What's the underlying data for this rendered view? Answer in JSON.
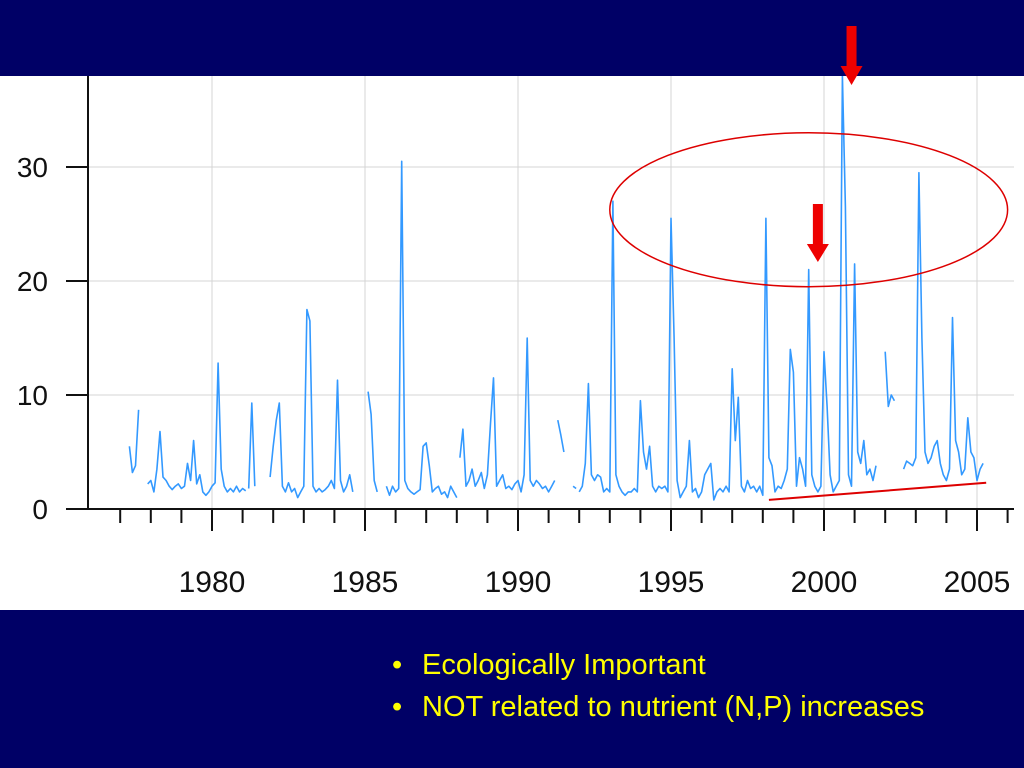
{
  "slide": {
    "background": "#000066",
    "bullet_color": "#ffff00",
    "bullet_glyph": "•",
    "bullets": [
      "Ecologically Important",
      "NOT related to nutrient (N,P) increases"
    ]
  },
  "annotations": {
    "arrow_color": "#ee0000",
    "ellipse_color": "#dd0000",
    "trend_line_color": "#dd0000",
    "arrows_point_to_years": [
      2000.9,
      1999.8
    ],
    "ellipse_spans_years": [
      1993.0,
      2006.0
    ],
    "ellipse_spans_values": [
      19.5,
      33.0
    ],
    "trend_line": {
      "x": [
        1998.2,
        2005.3
      ],
      "y": [
        0.8,
        2.3
      ]
    }
  },
  "chart_data": {
    "type": "line",
    "title": "",
    "xlabel": "",
    "ylabel": "",
    "xlim": [
      1975.9,
      2006.4
    ],
    "ylim": [
      0,
      38
    ],
    "x_ticks": [
      1980,
      1985,
      1990,
      1995,
      2000,
      2005
    ],
    "x_tick_labels": [
      "1980",
      "1985",
      "1990",
      "1995",
      "2000",
      "2005"
    ],
    "y_ticks": [
      0,
      10,
      20,
      30
    ],
    "y_tick_labels": [
      "0",
      "10",
      "20",
      "30"
    ],
    "grid": true,
    "line_color": "#3399ff",
    "segments": [
      {
        "x": [
          1977.3,
          1977.4,
          1977.5,
          1977.6
        ],
        "y": [
          5.5,
          3.2,
          3.8,
          8.7
        ]
      },
      {
        "x": [
          1977.9,
          1978.0,
          1978.1,
          1978.2,
          1978.3,
          1978.4,
          1978.5,
          1978.6,
          1978.7,
          1978.8,
          1978.9,
          1979.0,
          1979.1,
          1979.2,
          1979.3,
          1979.4,
          1979.5,
          1979.6,
          1979.7,
          1979.8,
          1979.9,
          1980.0,
          1980.1,
          1980.2,
          1980.3,
          1980.4,
          1980.5,
          1980.6,
          1980.7,
          1980.8,
          1980.9,
          1981.0,
          1981.1
        ],
        "y": [
          2.2,
          2.5,
          1.5,
          3.5,
          6.8,
          2.8,
          2.5,
          2.0,
          1.7,
          2.0,
          2.2,
          1.8,
          2.0,
          4.0,
          2.5,
          6.0,
          2.2,
          3.0,
          1.5,
          1.2,
          1.5,
          2.0,
          2.3,
          12.8,
          3.5,
          2.0,
          1.5,
          1.8,
          1.5,
          2.0,
          1.5,
          1.8,
          1.6
        ]
      },
      {
        "x": [
          1981.2,
          1981.3,
          1981.4
        ],
        "y": [
          1.8,
          9.3,
          2.0
        ]
      },
      {
        "x": [
          1981.9,
          1982.0,
          1982.1,
          1982.2,
          1982.3,
          1982.4,
          1982.5,
          1982.6,
          1982.7,
          1982.8,
          1982.9,
          1983.0,
          1983.1,
          1983.2,
          1983.3,
          1983.4,
          1983.5,
          1983.6,
          1983.7,
          1983.8,
          1983.9,
          1984.0,
          1984.1,
          1984.2,
          1984.3,
          1984.4,
          1984.5,
          1984.6
        ],
        "y": [
          2.8,
          5.5,
          7.8,
          9.3,
          2.0,
          1.5,
          2.3,
          1.5,
          1.8,
          1.0,
          1.5,
          2.0,
          17.5,
          16.5,
          2.0,
          1.5,
          1.8,
          1.5,
          1.7,
          2.0,
          2.5,
          1.8,
          11.3,
          2.5,
          1.5,
          2.0,
          3.0,
          1.5
        ]
      },
      {
        "x": [
          1985.1,
          1985.2,
          1985.3,
          1985.4
        ],
        "y": [
          10.3,
          8.3,
          2.5,
          1.5
        ]
      },
      {
        "x": [
          1985.7,
          1985.8,
          1985.9,
          1986.0,
          1986.1,
          1986.2,
          1986.3,
          1986.4,
          1986.5,
          1986.6,
          1986.7,
          1986.8,
          1986.9,
          1987.0,
          1987.1,
          1987.2,
          1987.3,
          1987.4,
          1987.5,
          1987.6,
          1987.7,
          1987.8,
          1987.9,
          1988.0
        ],
        "y": [
          2.0,
          1.2,
          2.0,
          1.5,
          1.8,
          30.5,
          2.5,
          1.8,
          1.5,
          1.3,
          1.5,
          1.7,
          5.5,
          5.8,
          3.8,
          1.5,
          1.8,
          2.0,
          1.3,
          1.5,
          1.0,
          2.0,
          1.5,
          1.0
        ]
      },
      {
        "x": [
          1988.1,
          1988.2,
          1988.3,
          1988.4,
          1988.5,
          1988.6,
          1988.7,
          1988.8,
          1988.9,
          1989.0,
          1989.1,
          1989.2,
          1989.3,
          1989.4,
          1989.5,
          1989.6,
          1989.7,
          1989.8,
          1989.9,
          1990.0,
          1990.1,
          1990.2,
          1990.3,
          1990.4,
          1990.5,
          1990.6,
          1990.7,
          1990.8,
          1990.9,
          1991.0,
          1991.1,
          1991.2
        ],
        "y": [
          4.5,
          7.0,
          2.0,
          2.5,
          3.5,
          2.0,
          2.5,
          3.2,
          1.8,
          3.0,
          7.5,
          11.5,
          2.0,
          2.5,
          3.0,
          1.8,
          2.0,
          1.7,
          2.2,
          2.5,
          1.5,
          3.0,
          15.0,
          2.5,
          2.0,
          2.5,
          2.2,
          1.8,
          2.0,
          1.5,
          2.0,
          2.5
        ]
      },
      {
        "x": [
          1991.3,
          1991.4,
          1991.5
        ],
        "y": [
          7.8,
          6.5,
          5.0
        ]
      },
      {
        "x": [
          1991.8,
          1991.9
        ],
        "y": [
          2.0,
          1.8
        ]
      },
      {
        "x": [
          1992.0,
          1992.1,
          1992.2,
          1992.3,
          1992.4,
          1992.5,
          1992.6,
          1992.7,
          1992.8,
          1992.9,
          1993.0,
          1993.1,
          1993.2,
          1993.3,
          1993.4,
          1993.5,
          1993.6,
          1993.7,
          1993.8,
          1993.9,
          1994.0,
          1994.1,
          1994.2,
          1994.3,
          1994.4,
          1994.5,
          1994.6,
          1994.7,
          1994.8,
          1994.9,
          1995.0,
          1995.1,
          1995.2,
          1995.3,
          1995.4,
          1995.5,
          1995.6,
          1995.7,
          1995.8,
          1995.9,
          1996.0,
          1996.1,
          1996.2,
          1996.3,
          1996.4,
          1996.5,
          1996.6,
          1996.7,
          1996.8,
          1996.9,
          1997.0,
          1997.1,
          1997.2,
          1997.3,
          1997.4,
          1997.5,
          1997.6,
          1997.7,
          1997.8,
          1997.9,
          1998.0,
          1998.1,
          1998.2,
          1998.3,
          1998.4,
          1998.5,
          1998.6,
          1998.7,
          1998.8,
          1998.9,
          1999.0,
          1999.1,
          1999.2,
          1999.3,
          1999.4,
          1999.5,
          1999.6,
          1999.7,
          1999.8,
          1999.9,
          2000.0,
          2000.1,
          2000.2,
          2000.3,
          2000.4,
          2000.5,
          2000.6,
          2000.7,
          2000.8,
          2000.9,
          2001.0,
          2001.1,
          2001.2,
          2001.3,
          2001.4,
          2001.5,
          2001.6,
          2001.7
        ],
        "y": [
          1.5,
          2.0,
          4.0,
          11.0,
          3.0,
          2.5,
          3.0,
          2.8,
          1.5,
          1.8,
          1.5,
          27.0,
          3.0,
          2.0,
          1.5,
          1.2,
          1.5,
          1.5,
          1.8,
          1.5,
          9.5,
          5.0,
          3.5,
          5.5,
          2.0,
          1.5,
          2.0,
          1.8,
          2.0,
          1.5,
          25.5,
          15.0,
          2.5,
          1.0,
          1.5,
          2.0,
          6.0,
          1.5,
          1.8,
          1.0,
          1.5,
          3.0,
          3.5,
          4.0,
          0.8,
          1.5,
          1.8,
          1.5,
          2.0,
          1.5,
          12.3,
          6.0,
          9.8,
          2.0,
          1.5,
          2.5,
          1.8,
          2.0,
          1.5,
          2.0,
          1.2,
          25.5,
          4.5,
          3.8,
          1.5,
          2.0,
          1.8,
          2.5,
          3.5,
          14.0,
          12.0,
          2.0,
          4.5,
          3.5,
          2.0,
          21.0,
          3.0,
          2.0,
          1.5,
          2.0,
          13.8,
          9.0,
          3.0,
          1.5,
          2.0,
          2.5,
          38.0,
          26.5,
          3.0,
          2.0,
          21.5,
          5.0,
          4.0,
          6.0,
          3.0,
          3.5,
          2.5,
          3.8
        ]
      },
      {
        "x": [
          2002.0,
          2002.1,
          2002.2,
          2002.3
        ],
        "y": [
          13.8,
          9.0,
          10.0,
          9.5
        ]
      },
      {
        "x": [
          2002.6,
          2002.7,
          2002.8,
          2002.9,
          2003.0,
          2003.1,
          2003.2,
          2003.3,
          2003.4,
          2003.5,
          2003.6,
          2003.7,
          2003.8,
          2003.9,
          2004.0,
          2004.1,
          2004.2,
          2004.3,
          2004.4,
          2004.5,
          2004.6,
          2004.7,
          2004.8,
          2004.9,
          2005.0,
          2005.1,
          2005.2
        ],
        "y": [
          3.5,
          4.2,
          4.0,
          3.8,
          4.5,
          29.5,
          15.0,
          5.0,
          4.0,
          4.5,
          5.5,
          6.0,
          4.0,
          3.0,
          2.5,
          3.5,
          16.8,
          6.0,
          5.0,
          3.0,
          3.5,
          8.0,
          5.0,
          4.5,
          2.5,
          3.5,
          4.0
        ]
      }
    ]
  }
}
